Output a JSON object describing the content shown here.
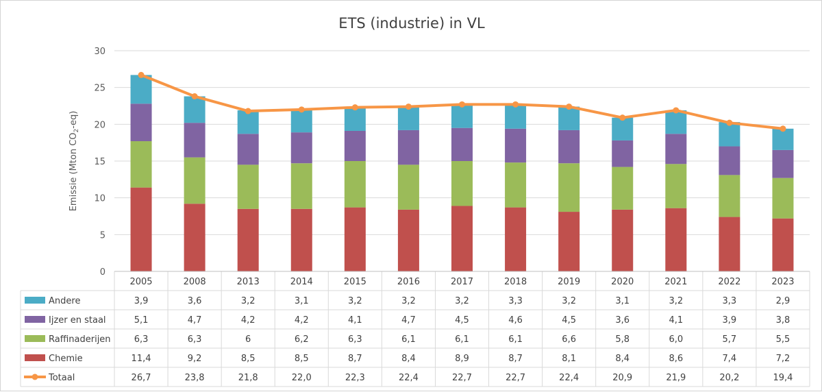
{
  "chart_data": {
    "type": "bar",
    "stacked": true,
    "title": "ETS (industrie) in VL",
    "ylabel_main": "Emissie (Mton CO",
    "ylabel_sub": "2",
    "ylabel_tail": "-eq)",
    "ylim": [
      0,
      30
    ],
    "yticks": [
      "0",
      "5",
      "10",
      "15",
      "20",
      "25",
      "30"
    ],
    "grid": true,
    "categories": [
      "2005",
      "2008",
      "2013",
      "2014",
      "2015",
      "2016",
      "2017",
      "2018",
      "2019",
      "2020",
      "2021",
      "2022",
      "2023"
    ],
    "series": [
      {
        "name": "Chemie",
        "type": "bar",
        "color": "#c0504d",
        "values": [
          11.4,
          9.2,
          8.5,
          8.5,
          8.7,
          8.4,
          8.9,
          8.7,
          8.1,
          8.4,
          8.6,
          7.4,
          7.2
        ],
        "labels": [
          "11,4",
          "9,2",
          "8,5",
          "8,5",
          "8,7",
          "8,4",
          "8,9",
          "8,7",
          "8,1",
          "8,4",
          "8,6",
          "7,4",
          "7,2"
        ]
      },
      {
        "name": "Raffinaderijen",
        "type": "bar",
        "color": "#9bbb59",
        "values": [
          6.3,
          6.3,
          6,
          6.2,
          6.3,
          6.1,
          6.1,
          6.1,
          6.6,
          5.8,
          6.0,
          5.7,
          5.5
        ],
        "labels": [
          "6,3",
          "6,3",
          "6",
          "6,2",
          "6,3",
          "6,1",
          "6,1",
          "6,1",
          "6,6",
          "5,8",
          "6,0",
          "5,7",
          "5,5"
        ]
      },
      {
        "name": "Ijzer en staal",
        "type": "bar",
        "color": "#8064a2",
        "values": [
          5.1,
          4.7,
          4.2,
          4.2,
          4.1,
          4.7,
          4.5,
          4.6,
          4.5,
          3.6,
          4.1,
          3.9,
          3.8
        ],
        "labels": [
          "5,1",
          "4,7",
          "4,2",
          "4,2",
          "4,1",
          "4,7",
          "4,5",
          "4,6",
          "4,5",
          "3,6",
          "4,1",
          "3,9",
          "3,8"
        ]
      },
      {
        "name": "Andere",
        "type": "bar",
        "color": "#4bacc6",
        "values": [
          3.9,
          3.6,
          3.2,
          3.1,
          3.2,
          3.2,
          3.2,
          3.3,
          3.2,
          3.1,
          3.2,
          3.3,
          2.9
        ],
        "labels": [
          "3,9",
          "3,6",
          "3,2",
          "3,1",
          "3,2",
          "3,2",
          "3,2",
          "3,3",
          "3,2",
          "3,1",
          "3,2",
          "3,3",
          "2,9"
        ]
      },
      {
        "name": "Totaal",
        "type": "line",
        "color": "#f79646",
        "values": [
          26.7,
          23.8,
          21.8,
          22.0,
          22.3,
          22.4,
          22.7,
          22.7,
          22.4,
          20.9,
          21.9,
          20.2,
          19.4
        ],
        "labels": [
          "26,7",
          "23,8",
          "21,8",
          "22,0",
          "22,3",
          "22,4",
          "22,7",
          "22,7",
          "22,4",
          "20,9",
          "21,9",
          "20,2",
          "19,4"
        ]
      }
    ],
    "table_row_order": [
      "Andere",
      "Ijzer en staal",
      "Raffinaderijen",
      "Chemie",
      "Totaal"
    ]
  }
}
